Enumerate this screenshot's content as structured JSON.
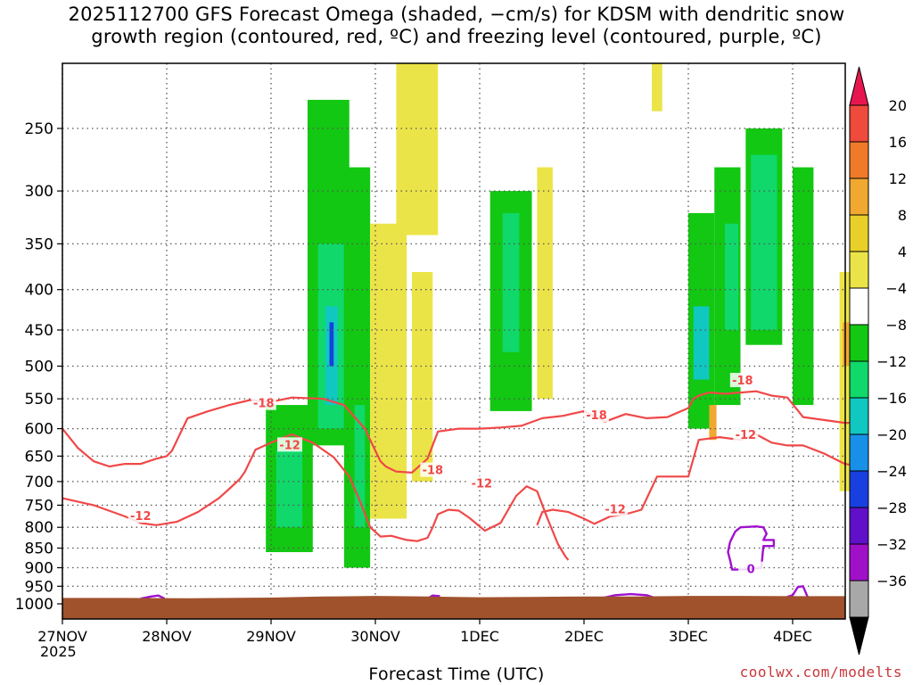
{
  "chart_data": {
    "type": "heatmap",
    "title": "2025112700 GFS Forecast Omega (shaded, −cm/s) for KDSM with dendritic snow growth region (contoured, red, ºC) and freezing level (contoured, purple, ºC)",
    "xlabel": "Forecast Time (UTC)",
    "ylabel": "",
    "x_ticks": [
      "27NOV",
      "28NOV",
      "29NOV",
      "30NOV",
      "1DEC",
      "2DEC",
      "3DEC",
      "4DEC"
    ],
    "x_tick_year": "2025",
    "y_ticks": [
      250,
      300,
      350,
      400,
      450,
      500,
      550,
      600,
      650,
      700,
      750,
      800,
      850,
      900,
      950,
      1000
    ],
    "y_scale": "log-pressure",
    "ylim": [
      1020,
      200
    ],
    "xlim_days": [
      0,
      7.65
    ],
    "grid": true,
    "colorbar": {
      "labels": [
        "20",
        "16",
        "12",
        "8",
        "4",
        "−4",
        "−8",
        "−12",
        "−16",
        "−20",
        "−24",
        "−28",
        "−32",
        "−36"
      ],
      "colors": [
        "#e8164f",
        "#f04a3c",
        "#f07a28",
        "#f0a830",
        "#e8d028",
        "#ebe448",
        "#ffffff",
        "#12c812",
        "#10d86a",
        "#10c8c0",
        "#1890e8",
        "#1840e0",
        "#6010c8",
        "#a010c8",
        "#a8a8a8",
        "#000000"
      ]
    },
    "contour_colors": {
      "dendritic": "#f04848",
      "freezing": "#a010d0",
      "terrain": "#a0522d"
    },
    "contour_labels": [
      {
        "label": "-18",
        "t": 1.93,
        "p": 558
      },
      {
        "label": "-12",
        "t": 2.18,
        "p": 630
      },
      {
        "label": "-18",
        "t": 3.55,
        "p": 678
      },
      {
        "label": "-12",
        "t": 4.02,
        "p": 705
      },
      {
        "label": "-18",
        "t": 5.12,
        "p": 578
      },
      {
        "label": "-12",
        "t": 5.3,
        "p": 760
      },
      {
        "label": "-12",
        "t": 0.75,
        "p": 775
      },
      {
        "label": "-18",
        "t": 6.52,
        "p": 522
      },
      {
        "label": "-12",
        "t": 6.55,
        "p": 612
      },
      {
        "label": "0",
        "t": 6.6,
        "p": 905
      }
    ],
    "dendritic_contours": [
      {
        "t": [
          0,
          0.15,
          0.3,
          0.45,
          0.6,
          0.75,
          0.9,
          1.0,
          1.05,
          1.1,
          1.2,
          1.4,
          1.6,
          1.8,
          2.0,
          2.2,
          2.5,
          2.7,
          2.9,
          3.0,
          3.05,
          3.1,
          3.2,
          3.35,
          3.5,
          3.6,
          3.8,
          4.0,
          4.2,
          4.4,
          4.6,
          4.8,
          5.0,
          5.2,
          5.4,
          5.6,
          5.8,
          6.0,
          6.05,
          6.1,
          6.2,
          6.35,
          6.5,
          6.65,
          6.8,
          6.95,
          7.1,
          7.3,
          7.5,
          7.65
        ],
        "p": [
          600,
          635,
          660,
          670,
          665,
          665,
          655,
          650,
          640,
          620,
          582,
          570,
          560,
          552,
          555,
          548,
          550,
          560,
          600,
          640,
          660,
          670,
          680,
          682,
          655,
          605,
          600,
          600,
          598,
          595,
          582,
          578,
          570,
          588,
          575,
          582,
          580,
          565,
          550,
          545,
          540,
          542,
          540,
          538,
          545,
          548,
          580,
          585,
          590,
          590
        ]
      },
      {
        "t": [
          0,
          0.3,
          0.6,
          0.75,
          0.9,
          1.1,
          1.3,
          1.5,
          1.6,
          1.7,
          1.75,
          1.85,
          2.0,
          2.2,
          2.4,
          2.6,
          2.75,
          2.85,
          2.95,
          3.05,
          3.15,
          3.3,
          3.4,
          3.5,
          3.55,
          3.6,
          3.7,
          3.8,
          3.9,
          4.05,
          4.2,
          4.35,
          4.45,
          4.55,
          4.65,
          4.75,
          4.82,
          4.85
        ],
        "p": [
          735,
          750,
          775,
          790,
          795,
          787,
          765,
          735,
          715,
          695,
          680,
          638,
          625,
          610,
          625,
          652,
          690,
          740,
          800,
          822,
          820,
          830,
          833,
          825,
          800,
          770,
          760,
          762,
          778,
          808,
          790,
          730,
          710,
          720,
          780,
          840,
          870,
          880
        ]
      },
      {
        "t": [
          4.55,
          4.6,
          4.7,
          4.85,
          5.0,
          5.1,
          5.25,
          5.4,
          5.55,
          5.7,
          5.85,
          6.0,
          6.1,
          6.3,
          6.5,
          6.65,
          6.8,
          6.95,
          7.1,
          7.3,
          7.5,
          7.65
        ],
        "p": [
          795,
          765,
          760,
          765,
          780,
          792,
          775,
          770,
          760,
          690,
          690,
          690,
          620,
          615,
          620,
          610,
          625,
          630,
          630,
          645,
          665,
          670
        ]
      }
    ],
    "freezing_contours": [
      {
        "t": [
          0.75,
          0.85,
          0.92,
          0.98
        ],
        "p": [
          985,
          979,
          976,
          985
        ]
      },
      {
        "t": [
          3.5,
          3.55,
          3.62
        ],
        "p": [
          985,
          976,
          978
        ]
      },
      {
        "t": [
          5.15,
          5.3,
          5.45,
          5.6,
          5.7
        ],
        "p": [
          985,
          975,
          972,
          975,
          985
        ]
      },
      {
        "t": [
          6.4,
          6.45,
          6.5,
          6.65,
          6.72,
          6.75,
          6.72,
          6.75,
          6.78,
          6.82,
          6.82,
          6.78,
          6.72,
          6.7,
          6.55,
          6.42,
          6.4,
          6.38,
          6.4
        ],
        "p": [
          835,
          810,
          800,
          798,
          800,
          815,
          830,
          830,
          830,
          830,
          845,
          845,
          845,
          900,
          905,
          905,
          880,
          860,
          835
        ]
      },
      {
        "t": [
          6.9,
          7.0,
          7.05,
          7.1,
          7.15
        ],
        "p": [
          985,
          975,
          952,
          950,
          985
        ]
      }
    ],
    "omega_cells": [
      {
        "t0": 1.95,
        "t1": 2.4,
        "p0": 560,
        "p1": 860,
        "level": "-8"
      },
      {
        "t0": 2.05,
        "t1": 2.3,
        "p0": 640,
        "p1": 800,
        "level": "-12"
      },
      {
        "t0": 2.35,
        "t1": 2.75,
        "p0": 230,
        "p1": 630,
        "level": "-8"
      },
      {
        "t0": 2.45,
        "t1": 2.7,
        "p0": 350,
        "p1": 600,
        "level": "-12"
      },
      {
        "t0": 2.52,
        "t1": 2.64,
        "p0": 420,
        "p1": 560,
        "level": "-16"
      },
      {
        "t0": 2.56,
        "t1": 2.6,
        "p0": 440,
        "p1": 500,
        "level": "-24"
      },
      {
        "t0": 2.7,
        "t1": 2.95,
        "p0": 280,
        "p1": 900,
        "level": "-8"
      },
      {
        "t0": 2.8,
        "t1": 2.9,
        "p0": 560,
        "p1": 800,
        "level": "-12"
      },
      {
        "t0": 2.95,
        "t1": 3.3,
        "p0": 330,
        "p1": 780,
        "level": "4"
      },
      {
        "t0": 3.2,
        "t1": 3.6,
        "p0": 200,
        "p1": 330,
        "level": "4"
      },
      {
        "t0": 3.35,
        "t1": 3.55,
        "p0": 380,
        "p1": 700,
        "level": "4"
      },
      {
        "t0": 4.1,
        "t1": 4.5,
        "p0": 300,
        "p1": 570,
        "level": "-8"
      },
      {
        "t0": 4.22,
        "t1": 4.38,
        "p0": 320,
        "p1": 480,
        "level": "-12"
      },
      {
        "t0": 4.55,
        "t1": 4.7,
        "p0": 280,
        "p1": 550,
        "level": "4"
      },
      {
        "t0": 5.65,
        "t1": 5.75,
        "p0": 200,
        "p1": 230,
        "level": "4"
      },
      {
        "t0": 6.0,
        "t1": 6.25,
        "p0": 320,
        "p1": 600,
        "level": "-8"
      },
      {
        "t0": 6.05,
        "t1": 6.2,
        "p0": 420,
        "p1": 520,
        "level": "-16"
      },
      {
        "t0": 6.25,
        "t1": 6.5,
        "p0": 280,
        "p1": 560,
        "level": "-8"
      },
      {
        "t0": 6.35,
        "t1": 6.48,
        "p0": 330,
        "p1": 450,
        "level": "-12"
      },
      {
        "t0": 6.55,
        "t1": 6.9,
        "p0": 250,
        "p1": 470,
        "level": "-8"
      },
      {
        "t0": 6.6,
        "t1": 6.85,
        "p0": 270,
        "p1": 450,
        "level": "-12"
      },
      {
        "t0": 7.0,
        "t1": 7.2,
        "p0": 280,
        "p1": 560,
        "level": "-8"
      },
      {
        "t0": 7.45,
        "t1": 7.6,
        "p0": 380,
        "p1": 720,
        "level": "4"
      },
      {
        "t0": 7.48,
        "t1": 7.55,
        "p0": 440,
        "p1": 500,
        "level": "8"
      },
      {
        "t0": 6.2,
        "t1": 6.27,
        "p0": 560,
        "p1": 620,
        "level": "8"
      }
    ]
  },
  "labels": {
    "title_line1": "2025112700 GFS Forecast Omega (shaded, −cm/s) for KDSM with dendritic snow",
    "title_line2": "growth region (contoured, red, ºC) and freezing level (contoured, purple, ºC)",
    "xlabel": "Forecast Time (UTC)",
    "watermark": "coolwx.com/modelts",
    "year": "2025"
  }
}
